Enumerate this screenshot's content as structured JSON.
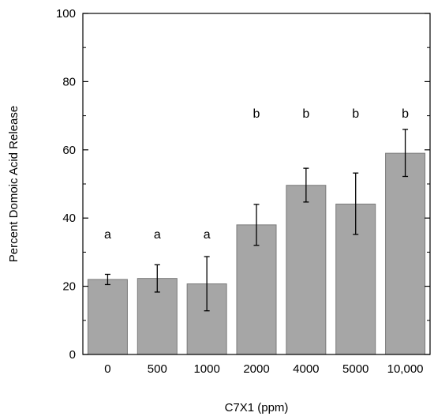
{
  "chart_data": {
    "type": "bar",
    "xlabel": "C7X1 (ppm)",
    "ylabel": "Percent Domoic Acid Release",
    "ylim": [
      0,
      100
    ],
    "yticks": [
      0,
      20,
      40,
      60,
      80,
      100
    ],
    "categories": [
      "0",
      "500",
      "1000",
      "2000",
      "4000",
      "5000",
      "10,000"
    ],
    "values": [
      22,
      22.3,
      20.7,
      38,
      49.6,
      44.1,
      59
    ],
    "error_low": [
      20.5,
      18.3,
      12.8,
      32,
      44.7,
      35.2,
      52.2
    ],
    "error_high": [
      23.5,
      26.3,
      28.7,
      44,
      54.6,
      53.2,
      66
    ],
    "significance": [
      "a",
      "a",
      "a",
      "b",
      "b",
      "b",
      "b"
    ],
    "grid": false,
    "colors": {
      "bar": "#a6a6a6",
      "bar_edge": "#7a7a7a",
      "axis": "#000000"
    }
  }
}
